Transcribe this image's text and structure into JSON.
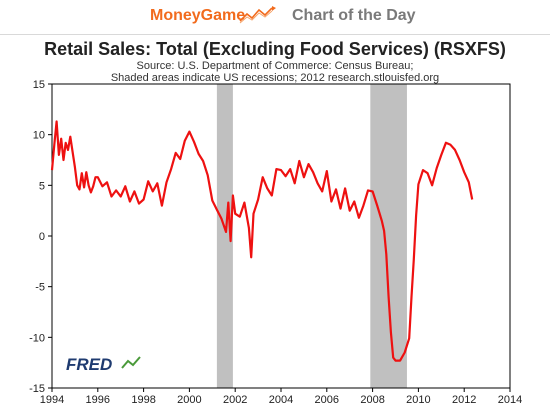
{
  "header": {
    "brand": "MoneyGame",
    "brand_icon": "trending-chart-icon",
    "section": "Chart of the Day",
    "brand_color": "#f26b1d"
  },
  "chart_data": {
    "type": "line",
    "title": "Retail Sales: Total (Excluding Food Services) (RSXFS)",
    "subtitle_lines": [
      "Source: U.S. Department of Commerce: Census Bureau;",
      "Shaded areas indicate US recessions; 2012 research.stlouisfed.org"
    ],
    "xlim": [
      1994,
      2014
    ],
    "ylim": [
      -15,
      15
    ],
    "xticks": [
      1994,
      1996,
      1998,
      2000,
      2002,
      2004,
      2006,
      2008,
      2010,
      2012,
      2014
    ],
    "yticks": [
      15,
      10,
      5,
      0,
      -5,
      -10,
      -15
    ],
    "grid": false,
    "line_color": "#ee1111",
    "recession_color": "#c0c0c0",
    "recessions": [
      [
        2001.2,
        2001.9
      ],
      [
        2007.9,
        2009.5
      ]
    ],
    "watermark": "FRED",
    "series": [
      {
        "x": [
          1994.0,
          1994.1,
          1994.2,
          1994.3,
          1994.4,
          1994.5,
          1994.6,
          1994.7,
          1994.8,
          1994.9,
          1995.0,
          1995.1,
          1995.2,
          1995.3,
          1995.4,
          1995.5,
          1995.6,
          1995.7,
          1995.8,
          1995.9,
          1996.0,
          1996.2,
          1996.4,
          1996.6,
          1996.8,
          1997.0,
          1997.2,
          1997.4,
          1997.6,
          1997.8,
          1998.0,
          1998.2,
          1998.4,
          1998.6,
          1998.8,
          1999.0,
          1999.2,
          1999.4,
          1999.6,
          1999.8,
          2000.0,
          2000.2,
          2000.4,
          2000.6,
          2000.8,
          2001.0,
          2001.2,
          2001.4,
          2001.6,
          2001.7,
          2001.8,
          2001.9,
          2002.0,
          2002.2,
          2002.4,
          2002.6,
          2002.7,
          2002.8,
          2003.0,
          2003.2,
          2003.4,
          2003.6,
          2003.8,
          2004.0,
          2004.2,
          2004.4,
          2004.6,
          2004.8,
          2005.0,
          2005.2,
          2005.4,
          2005.6,
          2005.8,
          2006.0,
          2006.2,
          2006.4,
          2006.6,
          2006.8,
          2007.0,
          2007.2,
          2007.4,
          2007.6,
          2007.8,
          2008.0,
          2008.2,
          2008.4,
          2008.5,
          2008.6,
          2008.7,
          2008.8,
          2008.9,
          2009.0,
          2009.2,
          2009.4,
          2009.6,
          2009.7,
          2009.8,
          2009.9,
          2010.0,
          2010.2,
          2010.4,
          2010.6,
          2010.8,
          2011.0,
          2011.2,
          2011.4,
          2011.6,
          2011.8,
          2012.0,
          2012.2,
          2012.35
        ],
        "y": [
          6.5,
          9.0,
          11.3,
          8.0,
          9.6,
          7.5,
          9.2,
          8.5,
          9.8,
          8.3,
          6.8,
          5.0,
          4.6,
          6.2,
          4.8,
          6.3,
          5.0,
          4.3,
          4.9,
          5.8,
          5.8,
          4.9,
          5.3,
          3.9,
          4.5,
          3.9,
          4.9,
          3.4,
          4.4,
          3.2,
          3.6,
          5.4,
          4.4,
          5.2,
          3.0,
          5.3,
          6.6,
          8.2,
          7.6,
          9.4,
          10.3,
          9.3,
          8.1,
          7.4,
          6.0,
          3.5,
          2.6,
          1.7,
          0.4,
          3.3,
          -0.5,
          4.0,
          2.2,
          1.9,
          3.3,
          0.8,
          -2.1,
          2.2,
          3.6,
          5.8,
          4.7,
          4.0,
          6.6,
          6.5,
          5.9,
          6.6,
          5.2,
          7.4,
          5.8,
          7.1,
          6.3,
          5.2,
          4.4,
          6.4,
          3.4,
          4.6,
          2.7,
          4.7,
          2.5,
          3.4,
          1.8,
          3.0,
          4.5,
          4.4,
          3.0,
          1.5,
          0.5,
          -1.8,
          -6.0,
          -9.5,
          -12.0,
          -12.3,
          -12.3,
          -11.5,
          -10.1,
          -6.0,
          -2.3,
          2.0,
          5.1,
          6.5,
          6.2,
          5.0,
          6.7,
          8.0,
          9.2,
          9.0,
          8.5,
          7.5,
          6.3,
          5.3,
          3.6
        ]
      }
    ]
  }
}
